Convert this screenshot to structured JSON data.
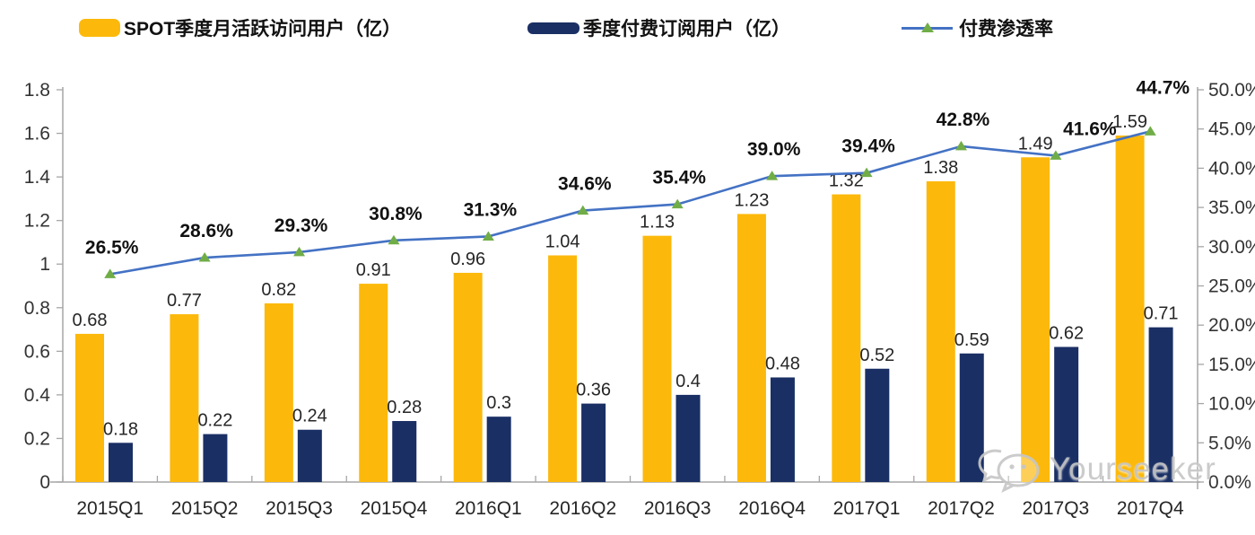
{
  "legend": {
    "items": [
      {
        "label": "SPOT季度月活跃访问用户（亿）",
        "swatch": "bar",
        "color": "#FCB90B"
      },
      {
        "label": "季度付费订阅用户（亿）",
        "swatch": "bar",
        "color": "#1A2F64"
      },
      {
        "label": "付费渗透率",
        "swatch": "line-marker",
        "line_color": "#4472C4",
        "marker_color": "#70AD47"
      }
    ]
  },
  "watermark": {
    "text": "Yourseeker",
    "icon": "wechat-bubbles-icon",
    "color": "#c7c7c7"
  },
  "chart_data": {
    "type": "bar+line combo",
    "title": "",
    "categories": [
      "2015Q1",
      "2015Q2",
      "2015Q3",
      "2015Q4",
      "2016Q1",
      "2016Q2",
      "2016Q3",
      "2016Q4",
      "2017Q1",
      "2017Q2",
      "2017Q3",
      "2017Q4"
    ],
    "series": [
      {
        "name": "SPOT季度月活跃访问用户（亿）",
        "type": "bar",
        "axis": "left",
        "color": "#FCB90B",
        "values": [
          0.68,
          0.77,
          0.82,
          0.91,
          0.96,
          1.04,
          1.13,
          1.23,
          1.32,
          1.38,
          1.49,
          1.59
        ],
        "labels": [
          "0.68",
          "0.77",
          "0.82",
          "0.91",
          "0.96",
          "1.04",
          "1.13",
          "1.23",
          "1.32",
          "1.38",
          "1.49",
          "1.59"
        ]
      },
      {
        "name": "季度付费订阅用户（亿）",
        "type": "bar",
        "axis": "left",
        "color": "#1A2F64",
        "values": [
          0.18,
          0.22,
          0.24,
          0.28,
          0.3,
          0.36,
          0.4,
          0.48,
          0.52,
          0.59,
          0.62,
          0.71
        ],
        "labels": [
          "0.18",
          "0.22",
          "0.24",
          "0.28",
          "0.3",
          "0.36",
          "0.4",
          "0.48",
          "0.52",
          "0.59",
          "0.62",
          "0.71"
        ]
      },
      {
        "name": "付费渗透率",
        "type": "line",
        "axis": "right",
        "color": "#4472C4",
        "marker": "triangle",
        "marker_color": "#70AD47",
        "values": [
          26.5,
          28.6,
          29.3,
          30.8,
          31.3,
          34.6,
          35.4,
          39.0,
          39.4,
          42.8,
          41.6,
          44.7
        ],
        "labels": [
          "26.5%",
          "28.6%",
          "29.3%",
          "30.8%",
          "31.3%",
          "34.6%",
          "35.4%",
          "39.0%",
          "39.4%",
          "42.8%",
          "41.6%",
          "44.7%"
        ]
      }
    ],
    "left_axis": {
      "min": 0,
      "max": 1.8,
      "ticks": [
        "0",
        "0.2",
        "0.4",
        "0.6",
        "0.8",
        "1",
        "1.2",
        "1.4",
        "1.6",
        "1.8"
      ]
    },
    "right_axis": {
      "min": 0,
      "max": 50,
      "ticks": [
        "0.0%",
        "5.0%",
        "10.0%",
        "15.0%",
        "20.0%",
        "25.0%",
        "30.0%",
        "35.0%",
        "40.0%",
        "45.0%",
        "50.0%"
      ]
    },
    "grid": false,
    "legend_position": "top"
  }
}
